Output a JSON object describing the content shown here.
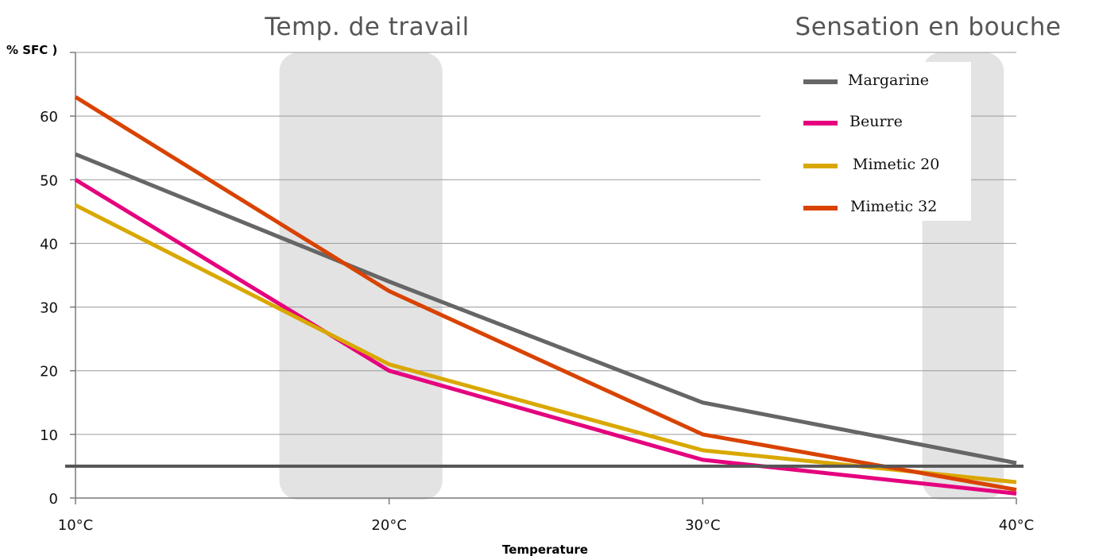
{
  "chart_data": {
    "type": "line",
    "ylabel": "% SFC )",
    "xlabel": "Temperature",
    "x": [
      10,
      20,
      30,
      40
    ],
    "x_tick_labels": [
      "10°C",
      "20°C",
      "30°C",
      "40°C"
    ],
    "xlim": [
      10,
      40
    ],
    "ylim": [
      0,
      70
    ],
    "y_ticks": [
      0,
      10,
      20,
      30,
      40,
      50,
      60
    ],
    "grid": true,
    "legend_position": "top-right",
    "series": [
      {
        "name": "Margarine",
        "color": "#666666",
        "values": [
          54,
          34,
          15,
          5.5
        ]
      },
      {
        "name": "Beurre",
        "color": "#e5007e",
        "values": [
          50,
          20,
          6,
          0.7
        ]
      },
      {
        "name": "Mimetic 20",
        "color": "#d9a800",
        "values": [
          46,
          21,
          7.5,
          2.5
        ]
      },
      {
        "name": "Mimetic 32",
        "color": "#d84300",
        "values": [
          63,
          32.5,
          10,
          1.3
        ]
      }
    ],
    "bands": [
      {
        "label": "Temp. de travail",
        "from": 16.5,
        "to": 21.7
      },
      {
        "label": "Sensation en bouche",
        "from": 37,
        "to": 39.6
      }
    ],
    "reference_line": {
      "y": 5,
      "color": "#555555"
    }
  }
}
